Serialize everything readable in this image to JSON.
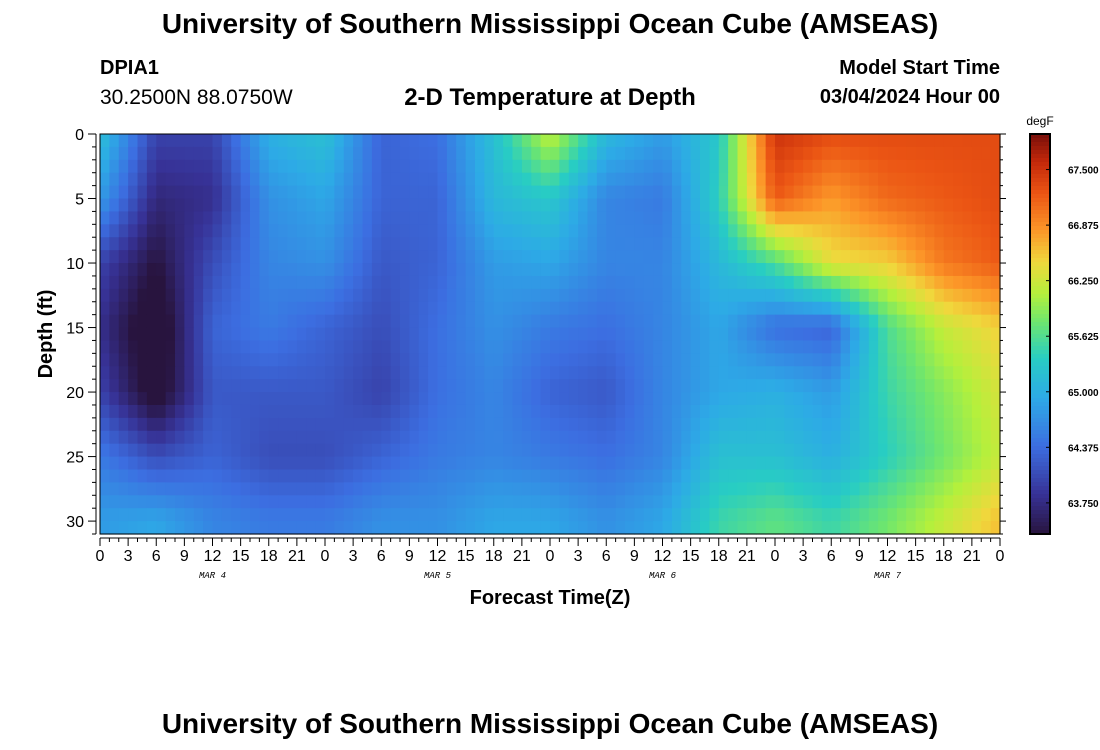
{
  "header": {
    "title": "University of Southern Mississippi Ocean Cube (AMSEAS)",
    "station": "DPIA1",
    "coordinates": "30.2500N  88.0750W",
    "subtitle": "2-D Temperature at Depth",
    "model_start_label": "Model Start Time",
    "model_start_value": "03/04/2024 Hour 00"
  },
  "footer": {
    "title": "University of Southern Mississippi Ocean Cube (AMSEAS)"
  },
  "chart_data": {
    "type": "heatmap",
    "title": "2-D Temperature at Depth",
    "xlabel": "Forecast Time(Z)",
    "ylabel": "Depth (ft)",
    "x_range_hours": [
      0,
      96
    ],
    "y_range_ft": [
      0,
      31
    ],
    "x_tick_labels": [
      "0",
      "3",
      "6",
      "9",
      "12",
      "15",
      "18",
      "21",
      "0",
      "3",
      "6",
      "9",
      "12",
      "15",
      "18",
      "21",
      "0",
      "3",
      "6",
      "9",
      "12",
      "15",
      "18",
      "21",
      "0",
      "3",
      "6",
      "9",
      "12",
      "15",
      "18",
      "21",
      "0"
    ],
    "day_labels": [
      {
        "label": "MAR 4",
        "hour": 12
      },
      {
        "label": "MAR 5",
        "hour": 36
      },
      {
        "label": "MAR 6",
        "hour": 60
      },
      {
        "label": "MAR 7",
        "hour": 84
      }
    ],
    "y_ticks": [
      0,
      5,
      10,
      15,
      20,
      25,
      30
    ],
    "colorbar": {
      "unit": "degF",
      "range": [
        63.4,
        67.9
      ],
      "tick_values": [
        63.75,
        64.375,
        65.0,
        65.625,
        66.25,
        66.875,
        67.5
      ],
      "tick_labels": [
        "63.750",
        "64.375",
        "65.000",
        "65.625",
        "66.250",
        "66.875",
        "67.500"
      ]
    },
    "grid": {
      "times_hours": [
        0,
        6,
        12,
        18,
        24,
        30,
        36,
        42,
        48,
        54,
        60,
        66,
        72,
        78,
        84,
        90,
        96
      ],
      "depths_ft": [
        0,
        5,
        10,
        15,
        20,
        25,
        30
      ],
      "temps_degF": [
        [
          65.2,
          64.0,
          64.0,
          65.0,
          65.2,
          64.3,
          64.4,
          65.2,
          66.2,
          65.1,
          64.8,
          65.3,
          67.5,
          67.3,
          67.3,
          67.3,
          67.3
        ],
        [
          64.8,
          63.7,
          63.8,
          64.7,
          64.9,
          64.3,
          64.3,
          65.1,
          65.3,
          64.6,
          64.5,
          65.4,
          67.2,
          66.8,
          67.1,
          67.2,
          67.3
        ],
        [
          64.0,
          63.4,
          64.1,
          64.6,
          64.7,
          64.2,
          64.3,
          64.8,
          64.9,
          64.6,
          64.6,
          65.1,
          65.6,
          66.4,
          66.5,
          67.0,
          67.2
        ],
        [
          63.8,
          63.1,
          64.3,
          64.5,
          64.3,
          64.1,
          64.4,
          64.7,
          64.5,
          64.4,
          64.6,
          64.9,
          64.4,
          64.3,
          65.6,
          66.2,
          66.5
        ],
        [
          64.0,
          63.2,
          64.2,
          64.2,
          64.2,
          64.0,
          64.4,
          64.6,
          64.3,
          64.2,
          64.6,
          64.9,
          65.0,
          64.8,
          65.5,
          65.9,
          66.3
        ],
        [
          64.5,
          64.1,
          64.3,
          64.1,
          64.1,
          64.3,
          64.5,
          64.6,
          64.5,
          64.4,
          64.6,
          65.2,
          65.2,
          65.0,
          65.4,
          65.8,
          66.2
        ],
        [
          64.8,
          64.9,
          64.6,
          64.5,
          64.5,
          64.7,
          64.7,
          64.9,
          64.9,
          64.7,
          64.9,
          65.5,
          65.7,
          65.5,
          65.8,
          66.2,
          66.6
        ]
      ]
    }
  }
}
